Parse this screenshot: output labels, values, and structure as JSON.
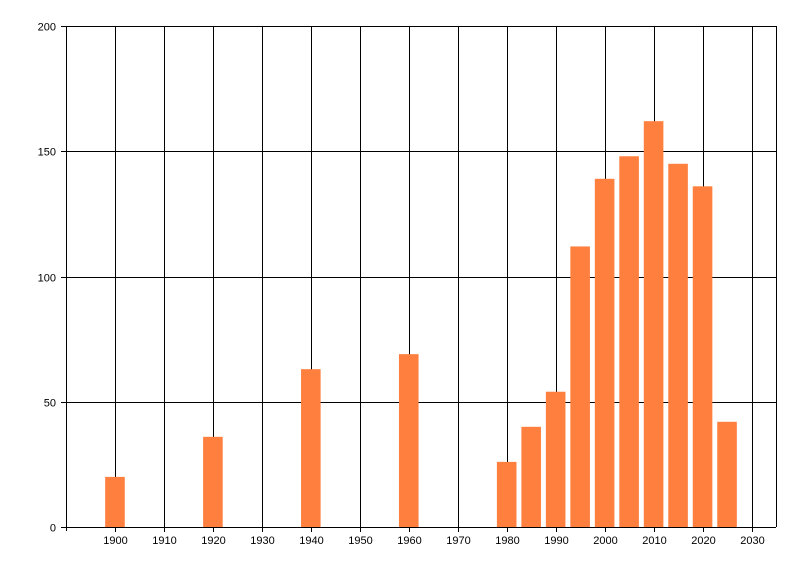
{
  "chart_data": {
    "type": "bar",
    "x": [
      1900,
      1920,
      1940,
      1960,
      1980,
      1985,
      1990,
      1995,
      2000,
      2005,
      2010,
      2015,
      2020,
      2025
    ],
    "values": [
      20,
      36,
      63,
      69,
      26,
      40,
      54,
      112,
      139,
      148,
      162,
      145,
      136,
      42
    ],
    "title": "",
    "xlabel": "",
    "ylabel": "",
    "xlim": [
      1890,
      2035
    ],
    "ylim": [
      0,
      200
    ],
    "x_ticks": [
      1900,
      1910,
      1920,
      1930,
      1940,
      1950,
      1960,
      1970,
      1980,
      1990,
      2000,
      2010,
      2020,
      2030
    ],
    "y_ticks": [
      0,
      50,
      100,
      150,
      200
    ],
    "x_tick_labels": [
      "1900",
      "1910",
      "1920",
      "1930",
      "1940",
      "1950",
      "1960",
      "1970",
      "1980",
      "1990",
      "2000",
      "2010",
      "2020",
      "2030"
    ],
    "y_tick_labels": [
      "0",
      "50",
      "100",
      "150",
      "200"
    ],
    "grid": true,
    "bar_width_years": 4,
    "bar_color": "#FF7F3F",
    "grid_color": "#000000",
    "axis_color": "#000000"
  }
}
